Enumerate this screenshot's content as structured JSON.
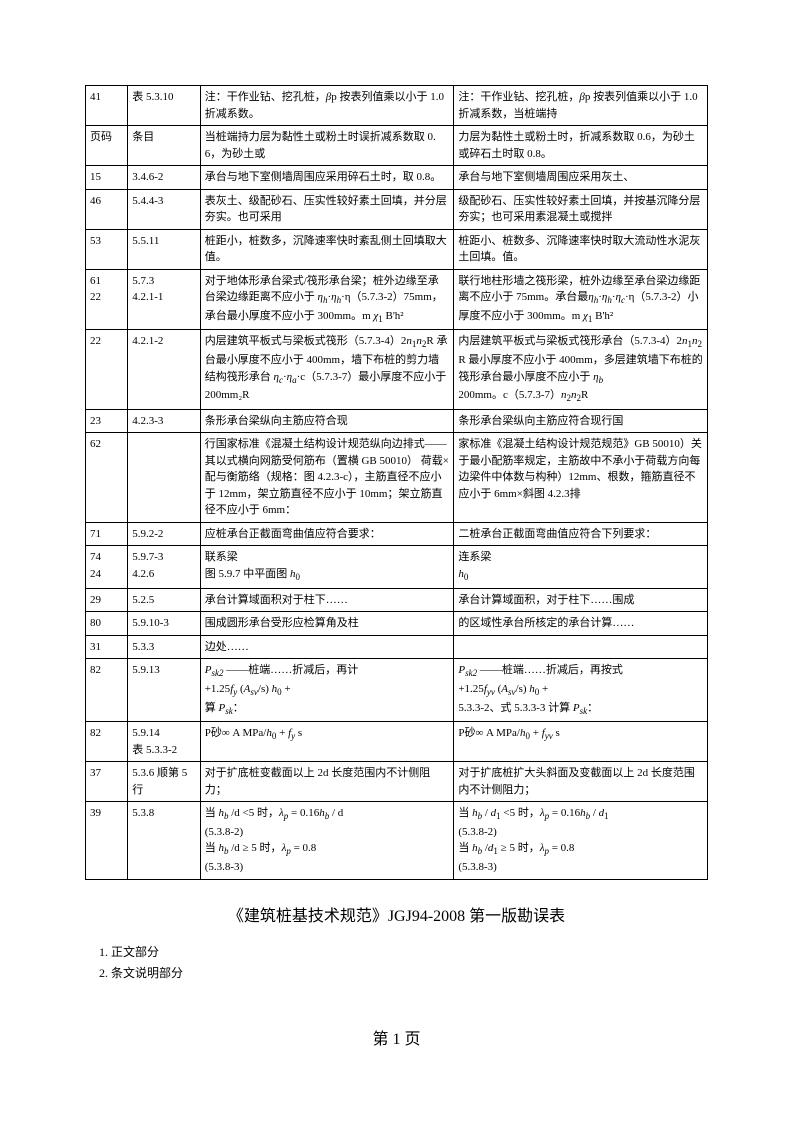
{
  "document": {
    "title": "《建筑桩基技术规范》JGJ94-2008 第一版勘误表",
    "page_num": "第 1 页",
    "notes": [
      "1.  正文部分",
      "2.  条文说明部分"
    ]
  },
  "table": {
    "rows": [
      {
        "c1": "41",
        "c2": "表 5.3.10",
        "c3": "注：干作业钻、挖孔桩，βp 按表列值乘以小于 1.0 折减系数。",
        "c4": "注：干作业钻、挖孔桩，βp 按表列值乘以小于 1.0 折减系数，当桩端持"
      },
      {
        "c1": "页码",
        "c2": "条目",
        "c3": "当桩端持力层为黏性土或粉土时误折减系数取 0.6，为砂土或",
        "c4": "力层为黏性土或粉土时，折减系数取 0.6，为砂土或碎石土时取 0.8。"
      },
      {
        "c1": "15",
        "c2": "3.4.6-2",
        "c3": "承台与地下室侧墙周围应采用碎石土时，取 0.8。",
        "c4": "承台与地下室侧墙周围应采用灰土、"
      },
      {
        "c1": "46",
        "c2": "5.4.4-3",
        "c3": "表灰土、级配砂石、压实性较好素土回填，并分层夯实。也可采用",
        "c4": "级配砂石、压实性较好素土回填，并按基沉降分层夯实；也可采用素混凝土或搅拌"
      },
      {
        "c1": "53",
        "c2": "5.5.11",
        "c3": "桩距小，桩数多，沉降速率快时紊乱侧土回填取大值。",
        "c4": "桩距小、桩数多、沉降速率快时取大流动性水泥灰土回填。值。"
      },
      {
        "c1": "61\n22",
        "c2": "5.7.3\n4.2.1-1",
        "c3": "对于地体形承台梁式/筏形承台梁；桩外边缘至承台梁边缘距离不应小于 ηh·ηh·η（5.7.3-2）75mm，承台最小厚度不应小于 300mm。m χ₁ B'h²",
        "c4": "联行地柱形墙之筏形梁，桩外边缘至承台梁边缘距离不应小于 75mm。承台最ηh·ηh·ηc·η（5.7.3-2）小厚度不应小于 300mm。m χ₁ B'h²"
      },
      {
        "c1": "22",
        "c2": "4.2.1-2",
        "c3": "内层建筑平板式与梁板式筏形（5.7.3-4）2n₁n₂R 承台最小厚度不应小于 400mm，墙下布桩的剪力墙结构筏形承台 ηc·ηa·c（5.7.3-7）最小厚度不应小于 200mm₂R",
        "c4": "内层建筑平板式与梁板式筏形承台（5.7.3-4）2n₁n₂R 最小厚度不应小于 400mm，多层建筑墙下布桩的筏形承台最小厚度不应小于 ηb 200mm。c（5.7.3-7）n₂n₂R"
      },
      {
        "c1": "23",
        "c2": "4.2.3-3",
        "c3": "条形承台梁纵向主筋应符合现",
        "c4": "条形承台梁纵向主筋应符合现行国"
      },
      {
        "c1": "62",
        "c2": "",
        "c3": "行国家标准《混凝土结构设计规范纵向边排式——其以式横向网筋受何筋布（置横 GB 50010） 荷载×配与衡筋络（规格：图 4.2.3-c），主筋直径不应小于 12mm，架立筋直径不应小于 10mm；架立筋直径不应小于 6mm：",
        "c4": "家标准《混凝土结构设计规范规范》GB 50010）关于最小配筋率规定，主筋故中不承小于荷载方向每边梁件中体数与构种）12mm、根数，箍筋直径不应小于 6mm×斜图 4.2.3排"
      },
      {
        "c1": "71",
        "c2": "5.9.2-2",
        "c3": "应桩承台正截面弯曲值应符合要求：",
        "c4": "二桩承台正截面弯曲值应符合下列要求："
      },
      {
        "c1": "74\n24",
        "c2": "5.9.7-3\n4.2.6",
        "c3": "联系梁\n图 5.9.7 中平面图 h₀",
        "c4": "连系梁\nh₀"
      },
      {
        "c1": "29",
        "c2": "5.2.5",
        "c3": "承台计算域面积对于柱下……",
        "c4": "承台计算域面积，对于柱下……围成"
      },
      {
        "c1": "80",
        "c2": "5.9.10-3",
        "c3": "围成圆形承台受形应检算角及柱",
        "c4": "的区域性承台所核定的承台计算……"
      },
      {
        "c1": "31",
        "c2": "5.3.3",
        "c3": "边处……",
        "c4": ""
      },
      {
        "c1": "82",
        "c2": "5.9.13",
        "c3": "Psk2 ——桩端……折减后，再计\n+1.25fy (Asv/s) h₀ +\n算 Psk：",
        "c4": "Psk2 ——桩端……折减后，再按式\n+1.25fyv (Asv/s) h₀ +\n5.3.3-2、式 5.3.3-3 计算 Psk："
      },
      {
        "c1": "82",
        "c2": "5.9.14\n表 5.3.3-2",
        "c3": "P砂∞ A MPa/h₀ + fy  s",
        "c4": "P砂∞ A MPa/h₀ + fyv  s"
      },
      {
        "c1": "37",
        "c2": "5.3.6 顺第 5 行",
        "c3": "对于扩底桩变截面以上 2d 长度范围内不计侧阻力；",
        "c4": "对于扩底桩扩大头斜面及变截面以上 2d 长度范围内不计侧阻力；"
      },
      {
        "c1": "39",
        "c2": "5.3.8",
        "c3": "当 hb /d <5 时，λp = 0.16hb / d\n(5.3.8-2)\n当 hb /d ≥ 5 时，λp = 0.8\n(5.3.8-3)",
        "c4": "当 hb / d1 <5 时，λp = 0.16hb / d1\n(5.3.8-2)\n当 hb /d1 ≥ 5 时，λp = 0.8\n(5.3.8-3)"
      }
    ],
    "border_color": "#000000",
    "background_color": "#ffffff",
    "text_color": "#000000"
  }
}
